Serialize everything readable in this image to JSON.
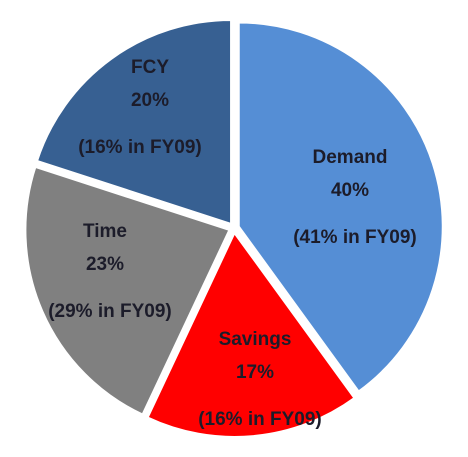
{
  "chart_data": {
    "type": "pie",
    "categories": [
      "Demand",
      "Savings",
      "Time",
      "FCY"
    ],
    "values": [
      40,
      17,
      23,
      20
    ],
    "value_labels": [
      "40%",
      "17%",
      "23%",
      "20%"
    ],
    "notes": [
      "(41% in FY09)",
      "(16% in FY09)",
      "(29% in FY09)",
      "(16% in FY09)"
    ],
    "colors": [
      "#558ed5",
      "#ff0000",
      "#808080",
      "#376092"
    ]
  }
}
